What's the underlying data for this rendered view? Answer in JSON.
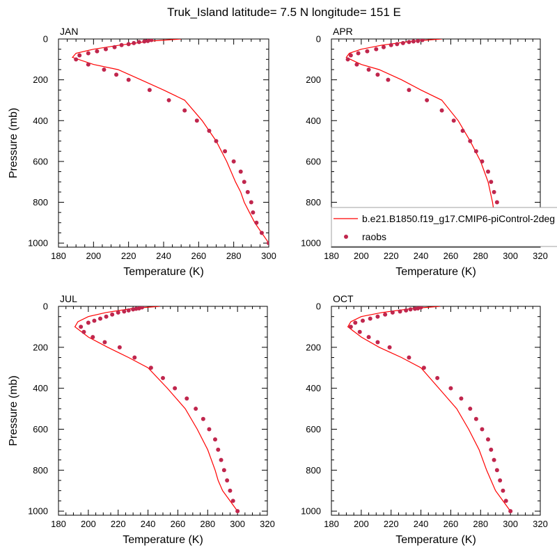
{
  "title": "Truk_Island  latitude= 7.5 N longitude= 151 E",
  "colors": {
    "model_line": "#ff0000",
    "obs_marker": "#c0264d"
  },
  "legend": {
    "model": "b.e21.B1850.f19_g17.CMIP6-piControl-2deg",
    "obs": "raobs"
  },
  "chart_data": [
    {
      "type": "line",
      "label": "JAN",
      "xlabel": "Temperature (K)",
      "ylabel": "Pressure (mb)",
      "xlim": [
        180,
        300
      ],
      "ylim": [
        1020,
        0
      ],
      "xticks": [
        180,
        200,
        220,
        240,
        260,
        280,
        300
      ],
      "yticks": [
        0,
        200,
        400,
        600,
        800,
        1000
      ],
      "series": [
        {
          "kind": "line",
          "x": [
            300,
            296,
            292,
            289,
            286,
            284,
            281,
            276,
            270,
            262,
            252,
            240,
            227,
            214,
            200,
            188,
            190,
            200,
            215,
            233,
            250
          ],
          "y": [
            1000,
            950,
            900,
            850,
            800,
            750,
            700,
            600,
            500,
            400,
            300,
            250,
            200,
            150,
            125,
            90,
            70,
            50,
            30,
            10,
            0
          ]
        },
        {
          "kind": "scatter",
          "x": [
            300,
            296,
            293,
            291,
            290,
            288,
            286,
            284,
            280,
            275,
            270,
            266,
            259,
            252,
            243,
            232,
            220,
            213,
            206,
            197,
            190,
            192,
            197,
            202,
            207,
            212,
            216,
            220,
            223,
            226,
            229,
            231,
            233
          ],
          "y": [
            1000,
            950,
            900,
            850,
            800,
            750,
            700,
            650,
            600,
            550,
            500,
            450,
            400,
            350,
            300,
            250,
            200,
            175,
            150,
            125,
            100,
            80,
            70,
            60,
            50,
            40,
            30,
            25,
            20,
            15,
            12,
            10,
            5
          ]
        }
      ]
    },
    {
      "type": "line",
      "label": "APR",
      "xlabel": "Temperature (K)",
      "ylabel": "",
      "xlim": [
        180,
        320
      ],
      "ylim": [
        1020,
        0
      ],
      "xticks": [
        180,
        200,
        220,
        240,
        260,
        280,
        300,
        320
      ],
      "yticks": [
        0,
        200,
        400,
        600,
        800,
        1000
      ],
      "series": [
        {
          "kind": "line",
          "x": [
            300,
            295,
            291,
            289,
            288,
            285,
            280,
            273,
            265,
            254,
            240,
            227,
            212,
            200,
            190,
            192,
            200,
            214,
            235,
            254
          ],
          "y": [
            1000,
            950,
            900,
            850,
            800,
            700,
            600,
            500,
            400,
            300,
            250,
            200,
            150,
            125,
            90,
            70,
            50,
            30,
            10,
            0
          ]
        },
        {
          "kind": "scatter",
          "x": [
            300,
            297,
            295,
            293,
            291,
            289,
            287,
            285,
            281,
            277,
            273,
            268,
            262,
            254,
            244,
            232,
            218,
            211,
            205,
            197,
            191,
            193,
            198,
            204,
            210,
            215,
            220,
            224,
            228,
            232,
            235,
            238,
            241
          ],
          "y": [
            1000,
            950,
            900,
            850,
            800,
            750,
            700,
            650,
            600,
            550,
            500,
            450,
            400,
            350,
            300,
            250,
            200,
            175,
            150,
            125,
            100,
            80,
            70,
            60,
            50,
            40,
            30,
            25,
            20,
            15,
            12,
            10,
            5
          ]
        }
      ]
    },
    {
      "type": "line",
      "label": "JUL",
      "xlabel": "Temperature (K)",
      "ylabel": "Pressure (mb)",
      "xlim": [
        180,
        320
      ],
      "ylim": [
        1020,
        0
      ],
      "xticks": [
        180,
        200,
        220,
        240,
        260,
        280,
        300,
        320
      ],
      "yticks": [
        0,
        200,
        400,
        600,
        800,
        1000
      ],
      "series": [
        {
          "kind": "line",
          "x": [
            300,
            295,
            290,
            287,
            285,
            280,
            273,
            265,
            253,
            240,
            227,
            213,
            200,
            191,
            193,
            200,
            212,
            230,
            248
          ],
          "y": [
            1000,
            950,
            900,
            850,
            800,
            700,
            600,
            500,
            400,
            300,
            250,
            200,
            150,
            100,
            75,
            50,
            30,
            10,
            0
          ]
        },
        {
          "kind": "scatter",
          "x": [
            300,
            297,
            295,
            293,
            291,
            289,
            287,
            285,
            281,
            277,
            272,
            266,
            258,
            250,
            242,
            231,
            221,
            211,
            203,
            197,
            195,
            200,
            204,
            208,
            212,
            216,
            220,
            224,
            227,
            230,
            232,
            234,
            236
          ],
          "y": [
            1000,
            950,
            900,
            850,
            800,
            750,
            700,
            650,
            600,
            550,
            500,
            450,
            400,
            350,
            300,
            250,
            200,
            175,
            150,
            125,
            100,
            80,
            70,
            60,
            50,
            40,
            30,
            25,
            20,
            15,
            12,
            10,
            5
          ]
        }
      ]
    },
    {
      "type": "line",
      "label": "OCT",
      "xlabel": "Temperature (K)",
      "ylabel": "",
      "xlim": [
        180,
        320
      ],
      "ylim": [
        1020,
        0
      ],
      "xticks": [
        180,
        200,
        220,
        240,
        260,
        280,
        300,
        320
      ],
      "yticks": [
        0,
        200,
        400,
        600,
        800,
        1000
      ],
      "series": [
        {
          "kind": "line",
          "x": [
            300,
            295,
            290,
            287,
            284,
            279,
            272,
            264,
            252,
            240,
            227,
            212,
            200,
            191,
            193,
            200,
            214,
            235,
            253
          ],
          "y": [
            1000,
            950,
            900,
            850,
            800,
            700,
            600,
            500,
            400,
            300,
            250,
            200,
            150,
            100,
            75,
            50,
            30,
            10,
            0
          ]
        },
        {
          "kind": "scatter",
          "x": [
            300,
            297,
            295,
            293,
            291,
            289,
            287,
            285,
            281,
            277,
            273,
            267,
            260,
            251,
            242,
            232,
            219,
            211,
            205,
            199,
            193,
            196,
            201,
            206,
            211,
            216,
            221,
            226,
            230,
            233,
            236,
            238,
            240
          ],
          "y": [
            1000,
            950,
            900,
            850,
            800,
            750,
            700,
            650,
            600,
            550,
            500,
            450,
            400,
            350,
            300,
            250,
            200,
            175,
            150,
            125,
            100,
            80,
            70,
            60,
            50,
            40,
            30,
            25,
            20,
            15,
            12,
            10,
            5
          ]
        }
      ]
    }
  ]
}
